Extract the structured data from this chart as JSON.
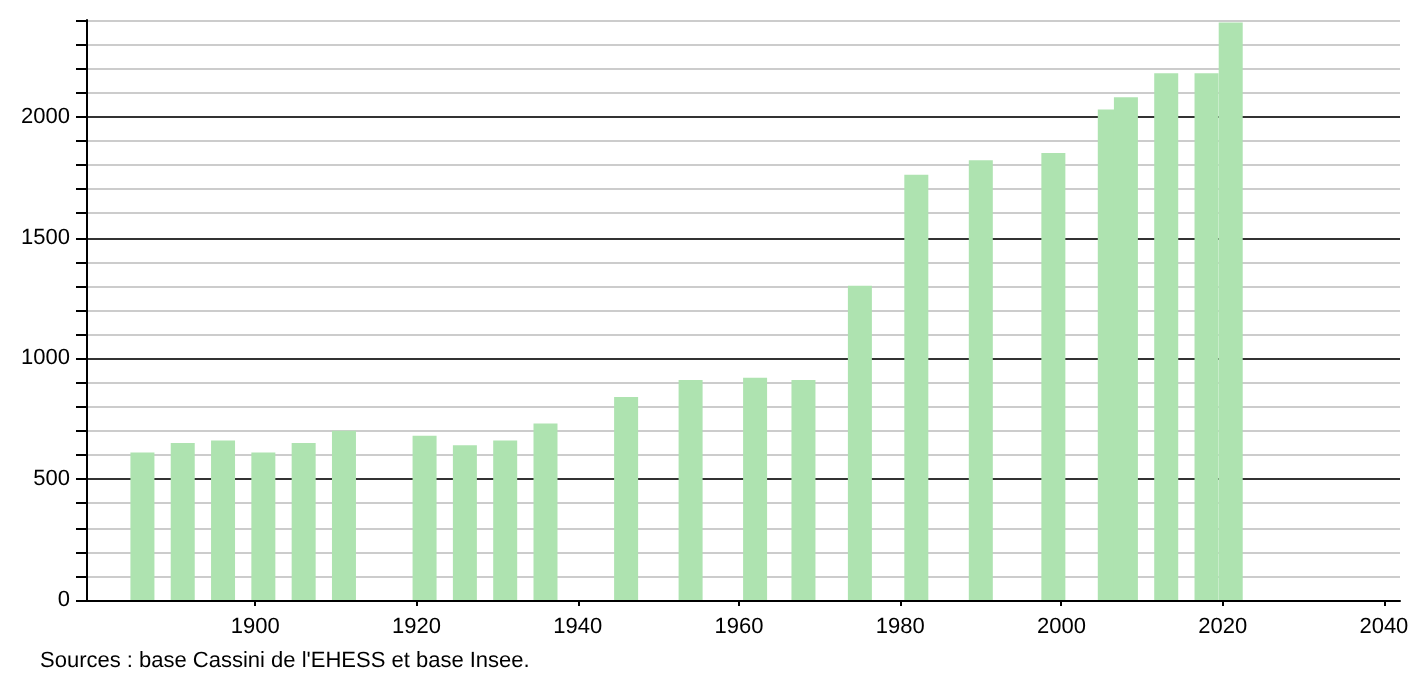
{
  "chart_data": {
    "type": "bar",
    "x": [
      1886,
      1891,
      1896,
      1901,
      1906,
      1911,
      1921,
      1926,
      1931,
      1936,
      1946,
      1954,
      1962,
      1968,
      1975,
      1982,
      1990,
      1999,
      2006,
      2008,
      2013,
      2018,
      2021
    ],
    "values": [
      610,
      650,
      660,
      610,
      650,
      700,
      680,
      640,
      660,
      730,
      840,
      910,
      920,
      910,
      1300,
      1760,
      1820,
      1850,
      2030,
      2080,
      2180,
      2180,
      2390
    ],
    "color": "#aee3b0",
    "xlim": [
      1879,
      2042
    ],
    "xticks": [
      1900,
      1920,
      1940,
      1960,
      1980,
      2000,
      2020,
      2040
    ],
    "ylim": [
      0,
      2400
    ],
    "yticks": [
      0,
      {
        "value": 100,
        "label": null
      },
      {
        "value": 200,
        "label": null
      },
      {
        "value": 300,
        "label": null
      },
      {
        "value": 400,
        "label": null
      },
      500,
      {
        "value": 600,
        "label": null
      },
      {
        "value": 700,
        "label": null
      },
      {
        "value": 800,
        "label": null
      },
      {
        "value": 900,
        "label": null
      },
      1000,
      {
        "value": 1100,
        "label": null
      },
      {
        "value": 1200,
        "label": null
      },
      {
        "value": 1300,
        "label": null
      },
      {
        "value": 1400,
        "label": null
      },
      1500,
      {
        "value": 1600,
        "label": null
      },
      {
        "value": 1700,
        "label": null
      },
      {
        "value": 1800,
        "label": null
      },
      {
        "value": 1900,
        "label": null
      },
      2000,
      {
        "value": 2100,
        "label": null
      },
      {
        "value": 2200,
        "label": null
      },
      {
        "value": 2300,
        "label": null
      },
      {
        "value": 2400,
        "label": null
      }
    ],
    "grid": "y",
    "annotations": [
      "Sources : base Cassini de l'EHESS et base Insee."
    ]
  }
}
